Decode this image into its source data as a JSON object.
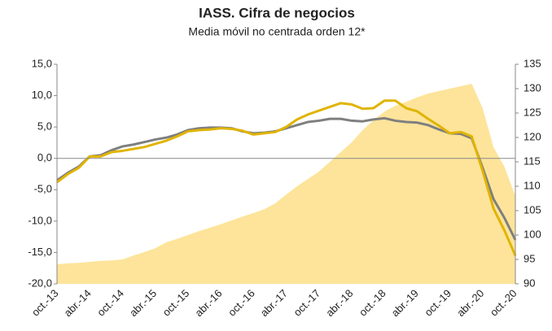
{
  "chart_data": {
    "type": "line",
    "title": "IASS. Cifra de negocios",
    "subtitle": "Media móvil no centrada orden 12*",
    "categories": [
      "oct.-13",
      null,
      null,
      "abr.-14",
      null,
      null,
      "oct.-14",
      null,
      null,
      "abr.-15",
      null,
      null,
      "oct.-15",
      null,
      null,
      "abr.-16",
      null,
      null,
      "oct.-16",
      null,
      null,
      "abr.-17",
      null,
      null,
      "oct.-17",
      null,
      null,
      "abr.-18",
      null,
      null,
      "oct.-18",
      null,
      null,
      "abr.-19",
      null,
      null,
      "oct.-19",
      null,
      null,
      "abr.-20",
      null,
      null,
      "oct.-20"
    ],
    "ylim": [
      -20,
      15
    ],
    "yticks": [
      {
        "value": -20,
        "label": "-20,0"
      },
      {
        "value": -15,
        "label": "-15,0"
      },
      {
        "value": -10,
        "label": "-10,0"
      },
      {
        "value": -5,
        "label": "-5,0"
      },
      {
        "value": 0,
        "label": "0,0"
      },
      {
        "value": 5,
        "label": "5,0"
      },
      {
        "value": 10,
        "label": "10,0"
      },
      {
        "value": 15,
        "label": "15,0"
      }
    ],
    "y2lim": [
      90,
      135
    ],
    "y2ticks": [
      90,
      95,
      100,
      105,
      110,
      115,
      120,
      125,
      130,
      135
    ],
    "series": [
      {
        "type": "area",
        "axis": "y2",
        "color": "#fde49a",
        "values": [
          94,
          94.2,
          94.3,
          94.5,
          94.7,
          94.8,
          95,
          95.8,
          96.5,
          97.3,
          98.5,
          99.2,
          100,
          100.8,
          101.5,
          102.2,
          103,
          103.8,
          104.5,
          105.3,
          106.5,
          108.3,
          110,
          111.5,
          113,
          115,
          117,
          119,
          121.5,
          123.5,
          125.3,
          126.5,
          127.3,
          128.2,
          129,
          129.5,
          130,
          130.5,
          131,
          126,
          118,
          114,
          108
        ]
      },
      {
        "type": "line",
        "color": "#7f7f7f",
        "values": [
          -3.5,
          -2.3,
          -1.3,
          0.3,
          0.5,
          1.3,
          1.9,
          2.2,
          2.6,
          3.0,
          3.3,
          3.8,
          4.5,
          4.8,
          4.9,
          4.9,
          4.8,
          4.3,
          4.0,
          4.1,
          4.3,
          4.8,
          5.3,
          5.8,
          6.0,
          6.3,
          6.3,
          6.0,
          5.9,
          6.2,
          6.4,
          6.0,
          5.8,
          5.7,
          5.3,
          4.6,
          4.0,
          3.9,
          3.2,
          -1.5,
          -6.5,
          -9.5,
          -13
        ]
      },
      {
        "type": "line",
        "color": "#e0b400",
        "values": [
          -3.8,
          -2.5,
          -1.5,
          0.3,
          0.3,
          1.0,
          1.2,
          1.5,
          1.8,
          2.3,
          2.8,
          3.5,
          4.3,
          4.5,
          4.6,
          4.8,
          4.7,
          4.4,
          3.8,
          4.0,
          4.2,
          5.0,
          6.2,
          7.0,
          7.6,
          8.2,
          8.8,
          8.6,
          7.9,
          8.0,
          9.2,
          9.2,
          8.0,
          7.5,
          6.3,
          5.2,
          4.0,
          4.2,
          3.5,
          -2.0,
          -8.0,
          -11.5,
          -15.5
        ]
      }
    ]
  }
}
